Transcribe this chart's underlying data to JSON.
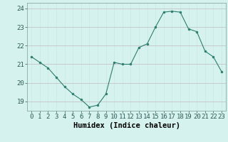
{
  "x": [
    0,
    1,
    2,
    3,
    4,
    5,
    6,
    7,
    8,
    9,
    10,
    11,
    12,
    13,
    14,
    15,
    16,
    17,
    18,
    19,
    20,
    21,
    22,
    23
  ],
  "y": [
    21.4,
    21.1,
    20.8,
    20.3,
    19.8,
    19.4,
    19.1,
    18.7,
    18.8,
    19.4,
    21.1,
    21.0,
    21.0,
    21.9,
    22.1,
    23.0,
    23.8,
    23.85,
    23.8,
    22.9,
    22.75,
    21.7,
    21.4,
    20.6
  ],
  "line_color": "#2d7d6e",
  "marker_color": "#2d7d6e",
  "bg_color": "#d5f2ee",
  "grid_color_v": "#c8e8e3",
  "grid_color_h": "#c0b8c0",
  "xlabel": "Humidex (Indice chaleur)",
  "xlim": [
    -0.5,
    23.5
  ],
  "ylim": [
    18.5,
    24.3
  ],
  "yticks": [
    19,
    20,
    21,
    22,
    23,
    24
  ],
  "xtick_labels": [
    "0",
    "1",
    "2",
    "3",
    "4",
    "5",
    "6",
    "7",
    "8",
    "9",
    "10",
    "11",
    "12",
    "13",
    "14",
    "15",
    "16",
    "17",
    "18",
    "19",
    "20",
    "21",
    "22",
    "23"
  ],
  "tick_fontsize": 6.5,
  "label_fontsize": 7.5
}
